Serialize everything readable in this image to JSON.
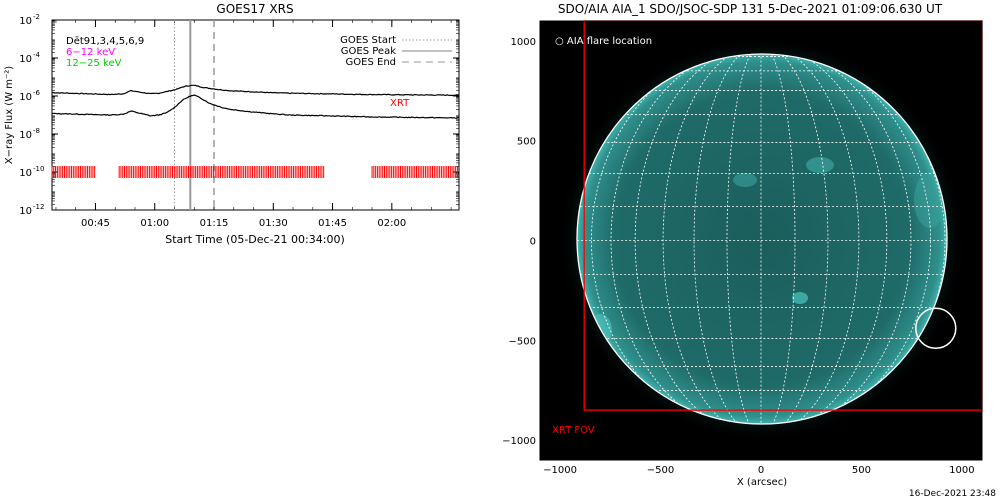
{
  "goes_panel": {
    "title": "GOES17 XRS",
    "det_label": "Dēt91,3,4,5,6,9",
    "band_low": "6−12 keV",
    "band_high": "12−25 keV",
    "legend_start": "GOES Start",
    "legend_peak": "GOES Peak",
    "legend_end": "GOES End",
    "xrt_label": "XRT",
    "ylabel": "X−ray Flux (W m⁻²)",
    "xlabel": "Start Time (05-Dec-21 00:34:00)",
    "y_exponent_ticks": [
      "-2",
      "-4",
      "-6",
      "-8",
      "-10",
      "-12"
    ],
    "x_tick_labels": [
      "00:45",
      "01:00",
      "01:15",
      "01:30",
      "01:45",
      "02:00"
    ],
    "colors": {
      "low": "#ff00ff",
      "high": "#00cc00",
      "xrt": "#ff0000"
    }
  },
  "aia_panel": {
    "title": "SDO/AIA AIA_1 SDO/JSOC-SDP 131  5-Dec-2021 01:09:06.630 UT",
    "flare_legend": "○ AIA flare location",
    "fov_label": "XRT FOV",
    "xlabel": "X (arcsec)",
    "x_tick_labels": [
      "−1000",
      "−500",
      "0",
      "500",
      "1000"
    ],
    "y_tick_labels": [
      "1000",
      "500",
      "0",
      "−500",
      "−1000"
    ],
    "colors": {
      "disk": "#1f6e6c",
      "fov": "#ff0000",
      "grid": "#ffffff"
    }
  },
  "footer_date": "16-Dec-2021 23:48",
  "chart_data": [
    {
      "type": "line",
      "title": "GOES17 XRS",
      "xlabel": "Start Time (05-Dec-21 00:34:00)",
      "ylabel": "X−ray Flux (W m⁻²)",
      "y_scale": "log",
      "ylim": [
        1e-12,
        0.01
      ],
      "xlim_minutes": [
        0,
        103
      ],
      "series": [
        {
          "name": "6−12 keV",
          "x": [
            0,
            15,
            18,
            20,
            25,
            27,
            29,
            32,
            33,
            35,
            36,
            37,
            38,
            40,
            43,
            45,
            50,
            55,
            60,
            70,
            80,
            90,
            103
          ],
          "y": [
            1.5e-06,
            1.2e-06,
            1.3e-06,
            1.9e-06,
            1.3e-06,
            1.4e-06,
            1.7e-06,
            2.4e-06,
            3e-06,
            3.6e-06,
            3.6e-06,
            3.3e-06,
            2.9e-06,
            2.5e-06,
            2.1e-06,
            1.9e-06,
            1.7e-06,
            1.5e-06,
            1.4e-06,
            1.3e-06,
            1.2e-06,
            1.15e-06,
            1.1e-06
          ]
        },
        {
          "name": "12−25 keV",
          "x": [
            0,
            15,
            18,
            20,
            25,
            27,
            29,
            31,
            33,
            35,
            36,
            37,
            38,
            40,
            43,
            45,
            50,
            55,
            60,
            70,
            80,
            90,
            103
          ],
          "y": [
            1.2e-07,
            1e-07,
            1.1e-07,
            1.6e-07,
            9e-08,
            1e-07,
            1.3e-07,
            2.5e-07,
            6e-07,
            1e-06,
            1.1e-06,
            9e-07,
            7e-07,
            4e-07,
            2.5e-07,
            2e-07,
            1.5e-07,
            1.2e-07,
            1e-07,
            9e-08,
            8e-08,
            7.5e-08,
            7e-08
          ]
        }
      ],
      "vlines_minutes": {
        "GOES Start": 31,
        "GOES Peak": 35,
        "GOES End": 41
      },
      "xrt_coverage_minutes": [
        [
          0,
          11
        ],
        [
          17,
          69
        ],
        [
          81,
          103
        ]
      ]
    },
    {
      "type": "image",
      "title": "SDO/AIA AIA_1 SDO/JSOC-SDP 131  5-Dec-2021 01:09:06.630 UT",
      "xlabel": "X (arcsec)",
      "xlim": [
        -1100,
        1100
      ],
      "ylim": [
        -1100,
        1100
      ],
      "solar_radius_arcsec": 975,
      "flare_location": {
        "x": 870,
        "y": -440
      },
      "xrt_fov": {
        "x": [
          -880,
          1100
        ],
        "y": [
          -850,
          1100
        ]
      }
    }
  ]
}
